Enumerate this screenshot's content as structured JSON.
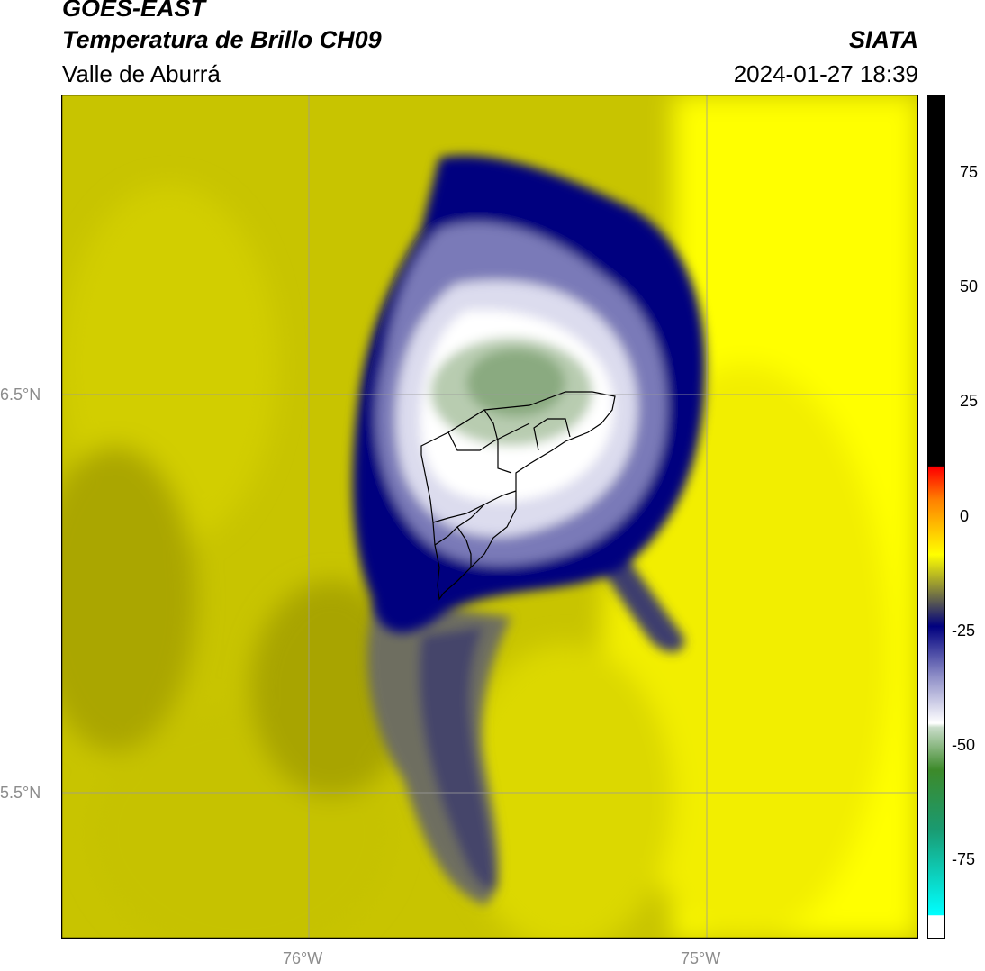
{
  "header": {
    "satellite": "GOES-EAST",
    "product": "Temperatura de Brillo CH09",
    "region": "Valle de Aburrá",
    "agency": "SIATA",
    "datetime": "2024-01-27 18:39"
  },
  "map": {
    "lon_ticks": [
      "76°W",
      "75°W"
    ],
    "lat_ticks": [
      "6.5°N",
      "5.5°N"
    ],
    "extent": {
      "lon": [
        -76.62,
        -74.53
      ],
      "lat": [
        5.13,
        7.24
      ]
    },
    "colors": {
      "warm_yellow": "#ffff00",
      "olive": "#b8b800",
      "navy": "#00007f",
      "white": "#ffffff",
      "green": "#8aaa80",
      "outline": "#000000",
      "grid": "#9a9a9a"
    }
  },
  "colorbar": {
    "ticks": [
      "75",
      "50",
      "25",
      "0",
      "-25",
      "-50",
      "-75"
    ],
    "range": [
      -92,
      92
    ],
    "colors": [
      "#ffffff",
      "#00ffff",
      "#1a9a70",
      "#3d8a2a",
      "#c8dcc8",
      "#ffffff",
      "#9090c8",
      "#00007f",
      "#9a9a30",
      "#ffff00",
      "#ff8000",
      "#ff0000",
      "#000000"
    ]
  }
}
